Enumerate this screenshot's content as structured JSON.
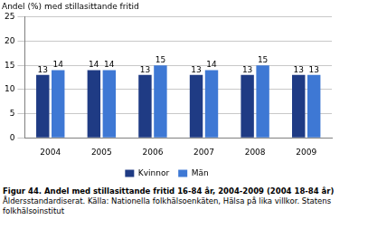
{
  "chart_data": {
    "type": "bar",
    "title": "Figur 44. Andel med stillasittande fritid 16-84 år, 2004-2009 (2004 18-84 år)",
    "subtitle": "Åldersstandardiserat. Källa: Nationella folkhälsoenkäten, Hälsa på lika villkor. Statens folkhälsoinstitut",
    "ylabel": "Andel (%) med stillasittande fritid",
    "categories": [
      "2004",
      "2005",
      "2006",
      "2007",
      "2008",
      "2009"
    ],
    "series": [
      {
        "name": "Kvinnor",
        "color": "#1f3b84",
        "values": [
          13,
          14,
          13,
          13,
          13,
          13
        ]
      },
      {
        "name": "Män",
        "color": "#3e78d4",
        "values": [
          14,
          14,
          15,
          14,
          15,
          13
        ]
      }
    ],
    "ylim": [
      0,
      25
    ],
    "yticks": [
      0,
      5,
      10,
      15,
      20,
      25
    ],
    "grid": true,
    "legend": "bottom",
    "data_labels": true
  }
}
